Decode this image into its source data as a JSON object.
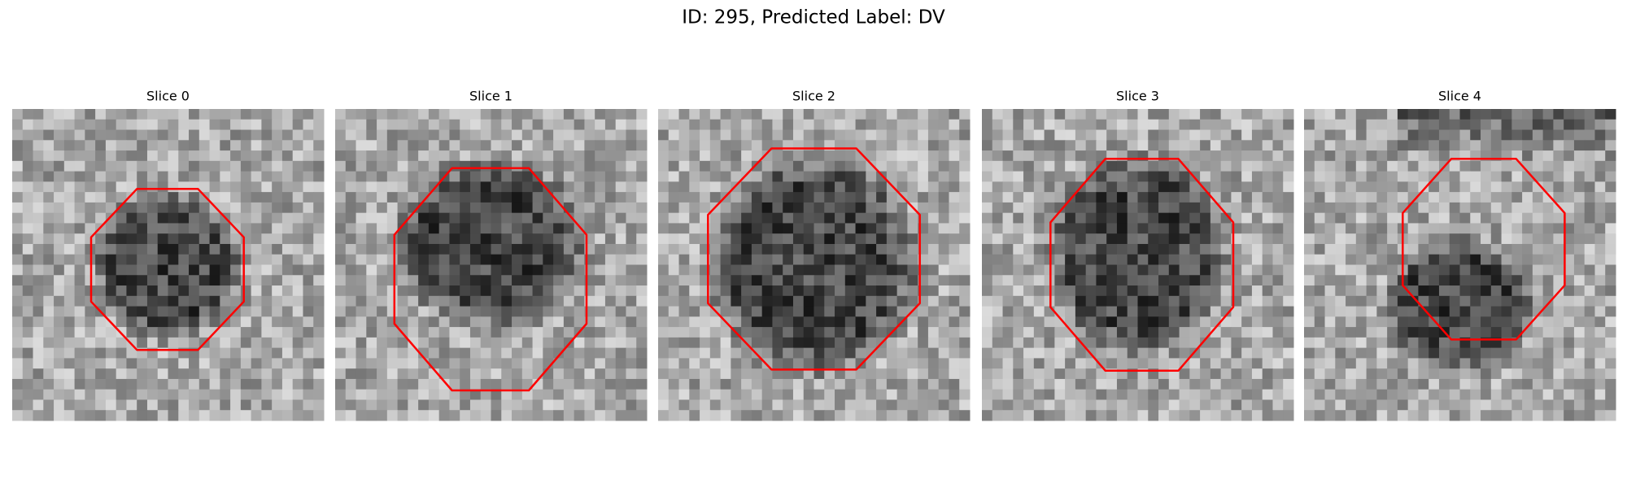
{
  "title": "ID: 295, Predicted Label: DV",
  "panels": [
    {
      "title": "Slice 0"
    },
    {
      "title": "Slice 1"
    },
    {
      "title": "Slice 2"
    },
    {
      "title": "Slice 3"
    },
    {
      "title": "Slice 4"
    }
  ]
}
